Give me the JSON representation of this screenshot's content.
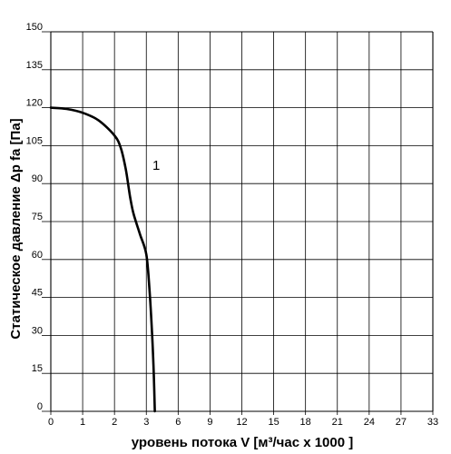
{
  "chart_data": {
    "type": "line",
    "xlabel": "уровень потока  V [м³/час x 1000 ]",
    "ylabel": "Статическое давление  Δp fa [Па]",
    "x_ticks": [
      "0",
      "1",
      "2",
      "3",
      "6",
      "9",
      "12",
      "15",
      "18",
      "21",
      "24",
      "27",
      "33"
    ],
    "y_ticks": [
      "0",
      "15",
      "30",
      "45",
      "60",
      "75",
      "90",
      "105",
      "120",
      "135",
      "150"
    ],
    "ylim": [
      0,
      150
    ],
    "grid": true,
    "series": [
      {
        "name": "1",
        "x": [
          0,
          0.5,
          1.0,
          1.5,
          2.0,
          2.2,
          2.35,
          2.45,
          2.5,
          2.6,
          2.8,
          3.0,
          3.3,
          3.55,
          3.7,
          3.8
        ],
        "y": [
          120,
          119.5,
          118,
          115,
          109,
          104,
          96,
          88,
          84,
          78,
          70,
          62,
          48,
          30,
          15,
          0
        ]
      }
    ]
  }
}
